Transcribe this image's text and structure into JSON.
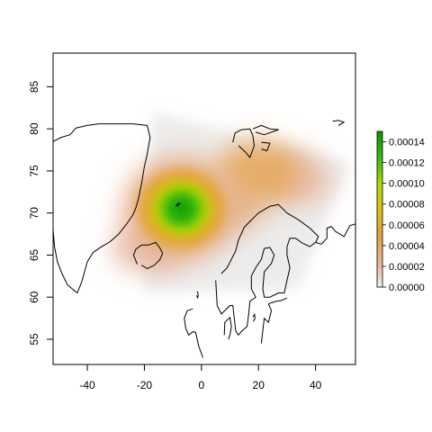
{
  "chart_data": {
    "type": "heatmap",
    "title": "",
    "xlabel": "",
    "ylabel": "",
    "xlim": [
      -52,
      54
    ],
    "ylim": [
      52,
      89
    ],
    "x_ticks": [
      {
        "value": -40,
        "label": "-40"
      },
      {
        "value": -20,
        "label": "-20"
      },
      {
        "value": 0,
        "label": "0"
      },
      {
        "value": 20,
        "label": "20"
      },
      {
        "value": 40,
        "label": "40"
      }
    ],
    "y_ticks": [
      {
        "value": 55,
        "label": "55"
      },
      {
        "value": 60,
        "label": "60"
      },
      {
        "value": 65,
        "label": "65"
      },
      {
        "value": 70,
        "label": "70"
      },
      {
        "value": 75,
        "label": "75"
      },
      {
        "value": 80,
        "label": "80"
      },
      {
        "value": 85,
        "label": "85"
      }
    ],
    "grid": false,
    "background_region": {
      "color": "#ececec",
      "corners": [
        [
          -20,
          60.5
        ],
        [
          -17,
          82
        ],
        [
          52,
          76
        ],
        [
          34,
          61
        ]
      ]
    },
    "density_peaks": [
      {
        "lon": -7,
        "lat": 70.5,
        "value": 0.000145
      },
      {
        "lon": 20,
        "lat": 75,
        "value": 4e-05
      },
      {
        "lon": 10,
        "lat": 71,
        "value": 2.5e-05
      },
      {
        "lon": -18,
        "lat": 66,
        "value": 2e-05
      },
      {
        "lon": 32,
        "lat": 74,
        "value": 2e-05
      }
    ],
    "legend": {
      "position": "right",
      "vmin": 0,
      "vmax": 0.00015,
      "ticks": [
        {
          "value": 0,
          "label": "0.00000"
        },
        {
          "value": 2e-05,
          "label": "0.00002"
        },
        {
          "value": 4e-05,
          "label": "0.00004"
        },
        {
          "value": 6e-05,
          "label": "0.00006"
        },
        {
          "value": 8e-05,
          "label": "0.00008"
        },
        {
          "value": 0.0001,
          "label": "0.00010"
        },
        {
          "value": 0.00012,
          "label": "0.00012"
        },
        {
          "value": 0.00014,
          "label": "0.00014"
        }
      ],
      "color_stops": [
        {
          "value": 0,
          "color": "#f2f2f2"
        },
        {
          "value": 2e-05,
          "color": "#e8b7a2"
        },
        {
          "value": 5e-05,
          "color": "#e4a23b"
        },
        {
          "value": 8e-05,
          "color": "#d8c90a"
        },
        {
          "value": 0.0001,
          "color": "#a8de00"
        },
        {
          "value": 0.00012,
          "color": "#4cbf10"
        },
        {
          "value": 0.00015,
          "color": "#009a00"
        }
      ]
    }
  },
  "coastlines": [
    {
      "name": "greenland",
      "points": [
        [
          -52,
          78.5
        ],
        [
          -49,
          79
        ],
        [
          -46,
          79.3
        ],
        [
          -44,
          80.1
        ],
        [
          -40,
          80.4
        ],
        [
          -36,
          80.6
        ],
        [
          -30,
          80.6
        ],
        [
          -24,
          80.6
        ],
        [
          -19,
          80.4
        ],
        [
          -18,
          79
        ],
        [
          -19,
          77
        ],
        [
          -20,
          75.5
        ],
        [
          -21,
          73.5
        ],
        [
          -22,
          71.8
        ],
        [
          -23,
          70.6
        ],
        [
          -24,
          69.8
        ],
        [
          -26,
          68.8
        ],
        [
          -29,
          67.5
        ],
        [
          -32,
          66.6
        ],
        [
          -35,
          66
        ],
        [
          -38,
          65.3
        ],
        [
          -40,
          64.2
        ],
        [
          -41,
          63
        ],
        [
          -42,
          61.8
        ],
        [
          -43.5,
          60.5
        ],
        [
          -45,
          60.9
        ],
        [
          -47,
          61.5
        ],
        [
          -49,
          62.9
        ],
        [
          -50.5,
          64.2
        ],
        [
          -51.5,
          66
        ],
        [
          -52,
          68
        ]
      ]
    },
    {
      "name": "iceland",
      "points": [
        [
          -22.5,
          63.9
        ],
        [
          -23.8,
          65
        ],
        [
          -23,
          65.7
        ],
        [
          -21,
          66.2
        ],
        [
          -18.5,
          66.2
        ],
        [
          -16,
          66.5
        ],
        [
          -14.5,
          65.8
        ],
        [
          -13.6,
          65.2
        ],
        [
          -14.5,
          64.5
        ],
        [
          -16.5,
          63.8
        ],
        [
          -19,
          63.4
        ],
        [
          -21,
          63.8
        ]
      ]
    },
    {
      "name": "jan-mayen",
      "points": [
        [
          -9,
          70.8
        ],
        [
          -8,
          71.2
        ],
        [
          -7.5,
          71.1
        ],
        [
          -8.5,
          70.8
        ]
      ]
    },
    {
      "name": "svalbard-west",
      "points": [
        [
          11,
          78.4
        ],
        [
          11.8,
          79.5
        ],
        [
          14,
          79.9
        ],
        [
          17,
          80
        ],
        [
          18,
          79.2
        ],
        [
          18.5,
          78
        ],
        [
          17,
          76.6
        ],
        [
          15.5,
          77.2
        ],
        [
          13,
          78
        ]
      ]
    },
    {
      "name": "svalbard-east",
      "points": [
        [
          18,
          80
        ],
        [
          21,
          80.4
        ],
        [
          24,
          80
        ],
        [
          27,
          79.9
        ],
        [
          22,
          79.3
        ],
        [
          19,
          79.6
        ]
      ]
    },
    {
      "name": "edgeoya",
      "points": [
        [
          21,
          78.4
        ],
        [
          24,
          78.3
        ],
        [
          23,
          77.4
        ],
        [
          21,
          77.6
        ]
      ]
    },
    {
      "name": "franz-josef",
      "points": [
        [
          46,
          80.9
        ],
        [
          48,
          81
        ],
        [
          50,
          80.8
        ],
        [
          48,
          80.4
        ]
      ]
    },
    {
      "name": "scandinavia",
      "points": [
        [
          5,
          62
        ],
        [
          5.5,
          59
        ],
        [
          7,
          58
        ],
        [
          10,
          59
        ],
        [
          11,
          59
        ],
        [
          12,
          56
        ],
        [
          13,
          55.5
        ],
        [
          14.2,
          56
        ],
        [
          16,
          56.5
        ],
        [
          16.5,
          57.8
        ],
        [
          17,
          59.5
        ],
        [
          19,
          60
        ],
        [
          17.5,
          61
        ],
        [
          17.5,
          62.5
        ],
        [
          19,
          63.5
        ],
        [
          21,
          64.5
        ],
        [
          22,
          65.8
        ],
        [
          24,
          65.9
        ],
        [
          25.5,
          65
        ],
        [
          24.5,
          64
        ],
        [
          22,
          63
        ],
        [
          21.5,
          61
        ],
        [
          22,
          60
        ],
        [
          24,
          60
        ],
        [
          27,
          60.5
        ],
        [
          29,
          60.5
        ],
        [
          30,
          62
        ],
        [
          31,
          63.5
        ],
        [
          30,
          65
        ],
        [
          30,
          66
        ],
        [
          31,
          67
        ],
        [
          33,
          67
        ],
        [
          35,
          66.5
        ],
        [
          38,
          66
        ],
        [
          40,
          66.5
        ],
        [
          41,
          67.2
        ],
        [
          38,
          68.2
        ],
        [
          34,
          69.2
        ],
        [
          30,
          70
        ],
        [
          27,
          71
        ],
        [
          24,
          70.8
        ],
        [
          20,
          70
        ],
        [
          17,
          69
        ],
        [
          15,
          68.3
        ],
        [
          13,
          66.8
        ],
        [
          12,
          65.5
        ],
        [
          10.5,
          64.5
        ],
        [
          9,
          63.5
        ],
        [
          7,
          62.8
        ]
      ]
    },
    {
      "name": "kola-north",
      "points": [
        [
          40,
          66.5
        ],
        [
          42,
          66.3
        ],
        [
          44,
          67
        ],
        [
          44,
          68.2
        ],
        [
          45.5,
          68.4
        ],
        [
          47,
          67.8
        ],
        [
          48,
          67.6
        ],
        [
          50,
          67.2
        ],
        [
          52,
          68.5
        ],
        [
          54,
          68.7
        ]
      ]
    },
    {
      "name": "britain",
      "points": [
        [
          -3,
          58.6
        ],
        [
          -5,
          58.4
        ],
        [
          -6,
          57.5
        ],
        [
          -5.5,
          56.3
        ],
        [
          -4.5,
          55.5
        ],
        [
          -3,
          55.9
        ],
        [
          -2,
          55.8
        ],
        [
          -1.5,
          55
        ],
        [
          -1,
          54.2
        ],
        [
          -0.2,
          53.5
        ],
        [
          0.5,
          52.8
        ]
      ]
    },
    {
      "name": "shetland",
      "points": [
        [
          -1.5,
          60.7
        ],
        [
          -1.1,
          60.3
        ],
        [
          -1.3,
          59.9
        ],
        [
          -1.7,
          60.2
        ]
      ]
    },
    {
      "name": "baltic-states",
      "points": [
        [
          21,
          54.5
        ],
        [
          21.5,
          56
        ],
        [
          22,
          57.5
        ],
        [
          23.5,
          57
        ],
        [
          24.5,
          58.4
        ],
        [
          23.5,
          59.2
        ],
        [
          26,
          59.5
        ],
        [
          28,
          59.6
        ],
        [
          30,
          59.9
        ]
      ]
    },
    {
      "name": "gotland",
      "points": [
        [
          18.2,
          57.1
        ],
        [
          18.8,
          57.5
        ],
        [
          18.6,
          58
        ],
        [
          18.1,
          57.6
        ]
      ]
    },
    {
      "name": "denmark",
      "points": [
        [
          8,
          55.5
        ],
        [
          8.2,
          57
        ],
        [
          10,
          57.6
        ],
        [
          10.5,
          56.5
        ],
        [
          10,
          55.5
        ],
        [
          9.5,
          55
        ]
      ]
    }
  ]
}
